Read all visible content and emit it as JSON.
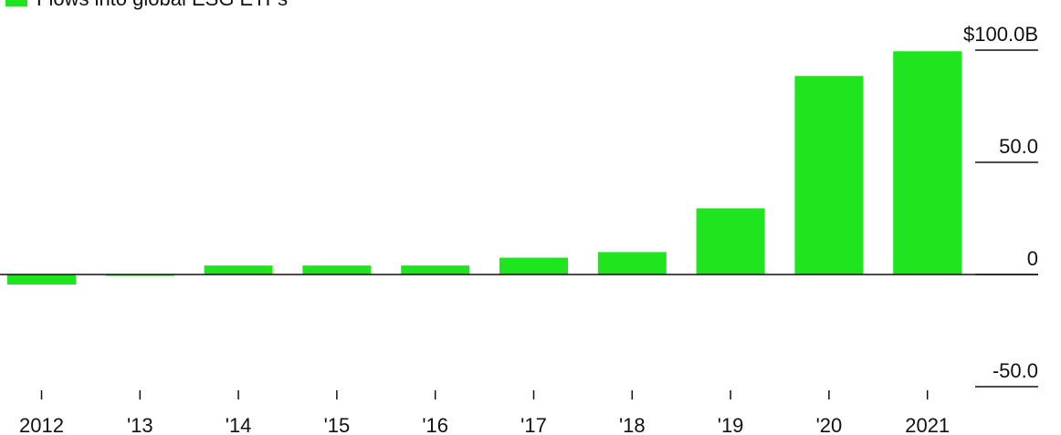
{
  "colors": {
    "bar": "#1ee51e",
    "axis": "#111111",
    "text": "#111111",
    "background": "#ffffff"
  },
  "legend": {
    "label": "Flows into global ESG ETFs",
    "swatch_color": "#1ee51e"
  },
  "chart_data": {
    "type": "bar",
    "title": "",
    "xlabel": "",
    "ylabel": "",
    "categories": [
      "2012",
      "'13",
      "'14",
      "'15",
      "'16",
      "'17",
      "'18",
      "'19",
      "'20",
      "'21"
    ],
    "category_labels": [
      "2012",
      "'13",
      "'14",
      "'15",
      "'16",
      "'17",
      "'18",
      "'19",
      "'20",
      "2021"
    ],
    "series": [
      {
        "values": [
          -4.5,
          -0.5,
          4.0,
          4.0,
          4.0,
          7.5,
          10.0,
          29.5,
          88.5,
          99.5
        ]
      }
    ],
    "ylim": [
      -50,
      100
    ],
    "yticks": [
      {
        "value": 100,
        "label": "$100.0B"
      },
      {
        "value": 50,
        "label": "50.0"
      },
      {
        "value": 0,
        "label": "0"
      },
      {
        "value": -50,
        "label": "-50.0"
      }
    ],
    "grid": false,
    "legend_position": "top-left"
  }
}
